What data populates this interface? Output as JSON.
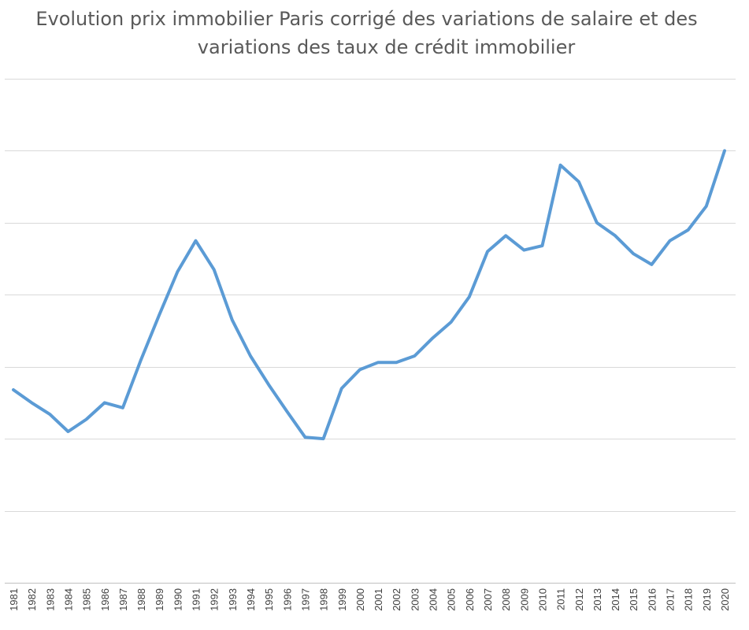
{
  "chart_data": {
    "type": "line",
    "title": "Evolution prix immobilier Paris corrigé des variations de salaire et des variations des taux de crédit immobilier",
    "title_lines": [
      "Evolution prix immobilier Paris corrigé des variations de salaire et des",
      "variations des taux de crédit immobilier"
    ],
    "xlabel": "",
    "ylabel": "",
    "categories": [
      "1981",
      "1982",
      "1983",
      "1984",
      "1985",
      "1986",
      "1987",
      "1988",
      "1989",
      "1990",
      "1991",
      "1992",
      "1993",
      "1994",
      "1995",
      "1996",
      "1997",
      "1998",
      "1999",
      "2000",
      "2001",
      "2002",
      "2003",
      "2004",
      "2005",
      "2006",
      "2007",
      "2008",
      "2009",
      "2010",
      "2011",
      "2012",
      "2013",
      "2014",
      "2015",
      "2016",
      "2017",
      "2018",
      "2019",
      "2020"
    ],
    "series": [
      {
        "color": "#5b9bd5",
        "values": [
          2.68,
          2.5,
          2.34,
          2.1,
          2.27,
          2.5,
          2.43,
          3.1,
          3.72,
          4.32,
          4.75,
          4.35,
          3.65,
          3.15,
          2.75,
          2.38,
          2.02,
          2.0,
          2.7,
          2.96,
          3.06,
          3.06,
          3.15,
          3.4,
          3.62,
          3.97,
          4.6,
          4.82,
          4.62,
          4.68,
          5.8,
          5.57,
          5.0,
          4.82,
          4.57,
          4.42,
          4.75,
          4.9,
          5.23,
          6.0
        ]
      }
    ],
    "ylim": [
      0,
      7
    ],
    "grid": true,
    "legend": "none"
  }
}
